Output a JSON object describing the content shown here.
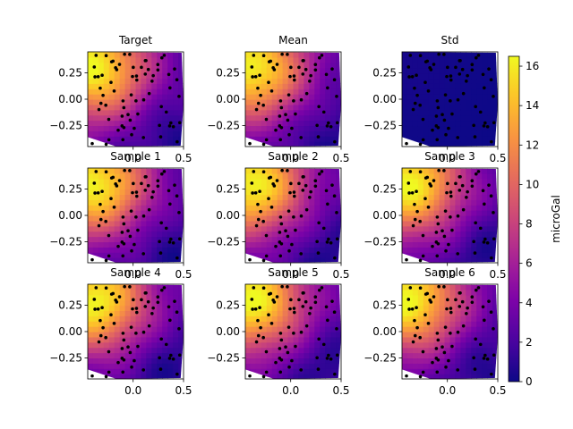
{
  "chart_data": {
    "type": "heatmap",
    "layout": {
      "rows": 3,
      "cols": 3
    },
    "panels": [
      {
        "title": "Target",
        "seed": 11,
        "level": 1.0
      },
      {
        "title": "Mean",
        "seed": 12,
        "level": 1.0
      },
      {
        "title": "Std",
        "seed": 13,
        "level": 0.02
      },
      {
        "title": "Sample 1",
        "seed": 21,
        "level": 1.0
      },
      {
        "title": "Sample 2",
        "seed": 22,
        "level": 1.0
      },
      {
        "title": "Sample 3",
        "seed": 23,
        "level": 1.0
      },
      {
        "title": "Sample 4",
        "seed": 31,
        "level": 1.0
      },
      {
        "title": "Sample 5",
        "seed": 32,
        "level": 1.0
      },
      {
        "title": "Sample 6",
        "seed": 33,
        "level": 1.0
      }
    ],
    "x_ticks": [
      0.0,
      0.5
    ],
    "x_tick_labels": [
      "0.0",
      "0.5"
    ],
    "y_ticks": [
      0.25,
      0.0,
      -0.25
    ],
    "y_tick_labels": [
      "0.25",
      "0.00",
      "−0.25"
    ],
    "xlim": [
      -0.45,
      0.5
    ],
    "ylim": [
      -0.45,
      0.45
    ],
    "colorbar": {
      "label": "microGal",
      "range": [
        0,
        16.5
      ],
      "ticks": [
        0,
        2,
        4,
        6,
        8,
        10,
        12,
        14,
        16
      ],
      "tick_labels": [
        "0",
        "2",
        "4",
        "6",
        "8",
        "10",
        "12",
        "14",
        "16"
      ],
      "colormap": "plasma"
    },
    "field": {
      "peak_value": 16.5,
      "peak_location": [
        -0.4,
        0.3
      ],
      "low_location": [
        0.35,
        -0.35
      ]
    },
    "station_count": 70
  }
}
